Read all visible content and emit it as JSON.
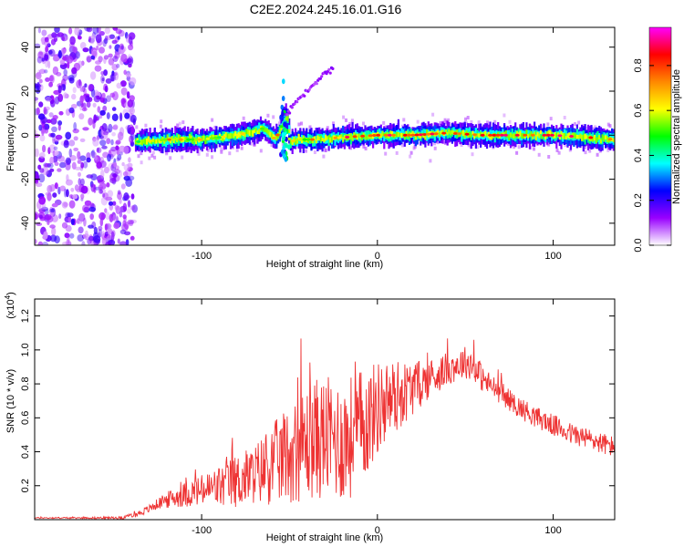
{
  "title": "C2E2.2024.245.16.01.G16",
  "chart_data": [
    {
      "type": "heatmap",
      "xlabel": "Height of straight line (km)",
      "ylabel": "Frequency (Hz)",
      "xlim": [
        -195,
        135
      ],
      "ylim": [
        -50,
        49
      ],
      "xticks": [
        -100,
        0,
        100
      ],
      "xtick_labels": [
        "-100",
        "0",
        "100"
      ],
      "yticks": [
        -40,
        -20,
        0,
        20,
        40
      ],
      "ytick_labels": [
        "-40",
        "-20",
        "0",
        "20",
        "40"
      ],
      "noise_region_x": [
        -195,
        -138
      ],
      "ridge": {
        "x": [
          -137,
          -120,
          -100,
          -80,
          -65,
          -58,
          -54,
          -52,
          -50,
          -45,
          -35,
          -20,
          0,
          20,
          40,
          60,
          80,
          100,
          120,
          135
        ],
        "freq": [
          -3,
          -2,
          -2,
          0,
          3,
          -2,
          5,
          10,
          -3,
          -2,
          -2,
          -1,
          0,
          0,
          1,
          0,
          0,
          0,
          -1,
          -2
        ]
      },
      "branch": {
        "x": [
          -52,
          -45,
          -40,
          -35,
          -30,
          -25
        ],
        "freq": [
          9,
          16,
          20,
          24,
          28,
          30
        ]
      },
      "colorbar": {
        "label": "Normalized spectral amplitude",
        "range": [
          0,
          0.97
        ],
        "ticks": [
          0.0,
          0.2,
          0.4,
          0.6,
          0.8
        ],
        "tick_labels": [
          "0.0",
          "0.2",
          "0.4",
          "0.6",
          "0.8"
        ],
        "colors": [
          "#ffffff",
          "#9900ff",
          "#0000ff",
          "#00ffff",
          "#00ff00",
          "#ffff00",
          "#ff8800",
          "#ff0000",
          "#ff00ff"
        ]
      }
    },
    {
      "type": "line",
      "xlabel": "Height of straight line (km)",
      "ylabel": "SNR (10 * v/v)",
      "multiplier": "(x10",
      "multiplier_exp": "4",
      "multiplier_close": ")",
      "xlim": [
        -195,
        135
      ],
      "ylim": [
        0,
        1.3
      ],
      "xticks": [
        -100,
        0,
        100
      ],
      "xtick_labels": [
        "-100",
        "0",
        "100"
      ],
      "yticks": [
        0.2,
        0.4,
        0.6,
        0.8,
        1.0,
        1.2
      ],
      "ytick_labels": [
        "0.2",
        "0.4",
        "0.6",
        "0.8",
        "1.0",
        "1.2"
      ],
      "series": [
        {
          "color": "#ee3333",
          "x": [
            -195,
            -170,
            -145,
            -137,
            -130,
            -125,
            -120,
            -110,
            -100,
            -90,
            -80,
            -70,
            -60,
            -50,
            -45,
            -40,
            -35,
            -30,
            -25,
            -20,
            -15,
            -10,
            -5,
            0,
            10,
            20,
            30,
            40,
            50,
            55,
            60,
            70,
            80,
            90,
            100,
            110,
            120,
            135
          ],
          "base": [
            0.01,
            0.01,
            0.01,
            0.03,
            0.06,
            0.09,
            0.11,
            0.14,
            0.16,
            0.18,
            0.21,
            0.25,
            0.3,
            0.36,
            0.39,
            0.42,
            0.44,
            0.45,
            0.44,
            0.43,
            0.45,
            0.5,
            0.56,
            0.63,
            0.7,
            0.76,
            0.82,
            0.88,
            0.92,
            0.9,
            0.82,
            0.74,
            0.66,
            0.6,
            0.55,
            0.5,
            0.47,
            0.42
          ],
          "spread": [
            0.005,
            0.005,
            0.01,
            0.02,
            0.03,
            0.04,
            0.06,
            0.09,
            0.12,
            0.16,
            0.2,
            0.22,
            0.3,
            0.36,
            0.4,
            0.42,
            0.45,
            0.45,
            0.45,
            0.46,
            0.46,
            0.44,
            0.4,
            0.35,
            0.28,
            0.2,
            0.14,
            0.12,
            0.12,
            0.12,
            0.1,
            0.08,
            0.08,
            0.08,
            0.08,
            0.08,
            0.08,
            0.08
          ]
        }
      ]
    }
  ]
}
